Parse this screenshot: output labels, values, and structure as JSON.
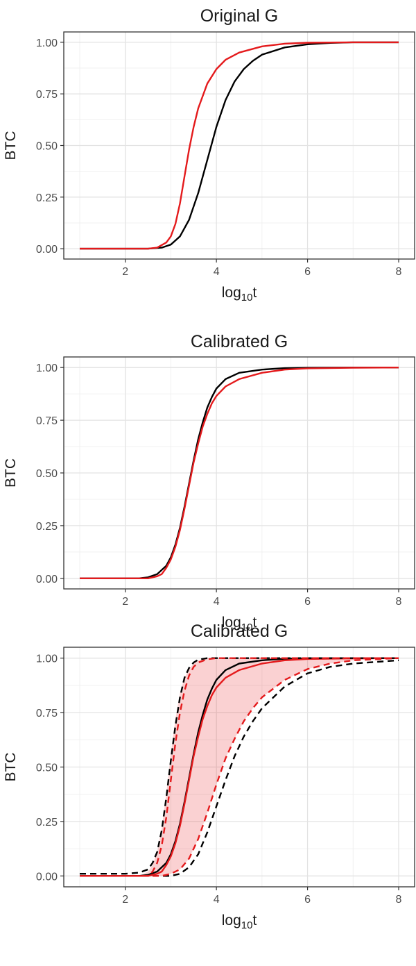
{
  "chart_data": [
    {
      "type": "line",
      "title": "Original G",
      "xlabel": "log10t",
      "ylabel": "BTC",
      "xlim": [
        0.65,
        8.35
      ],
      "ylim": [
        -0.05,
        1.05
      ],
      "xticks": [
        2,
        4,
        6,
        8
      ],
      "yticks": [
        0.0,
        0.25,
        0.5,
        0.75,
        1.0
      ],
      "xtick_labels": [
        "2",
        "4",
        "6",
        "8"
      ],
      "ytick_labels": [
        "0.00",
        "0.25",
        "0.50",
        "0.75",
        "1.00"
      ],
      "grid": true,
      "series": [
        {
          "color": "#000000",
          "dash": false,
          "x": [
            1.0,
            2.5,
            2.8,
            3.0,
            3.2,
            3.4,
            3.6,
            3.8,
            4.0,
            4.2,
            4.4,
            4.6,
            4.8,
            5.0,
            5.5,
            6.0,
            6.5,
            7.0,
            8.0
          ],
          "y": [
            0.0,
            0.0,
            0.005,
            0.02,
            0.06,
            0.14,
            0.27,
            0.43,
            0.59,
            0.72,
            0.81,
            0.87,
            0.91,
            0.94,
            0.975,
            0.99,
            0.997,
            1.0,
            1.0
          ]
        },
        {
          "color": "#e41a1c",
          "dash": false,
          "x": [
            1.0,
            2.5,
            2.7,
            2.9,
            3.0,
            3.1,
            3.2,
            3.3,
            3.4,
            3.5,
            3.6,
            3.8,
            4.0,
            4.2,
            4.5,
            5.0,
            5.5,
            6.0,
            7.0,
            8.0
          ],
          "y": [
            0.0,
            0.0,
            0.005,
            0.03,
            0.06,
            0.12,
            0.22,
            0.35,
            0.48,
            0.59,
            0.68,
            0.8,
            0.87,
            0.915,
            0.95,
            0.98,
            0.993,
            0.998,
            1.0,
            1.0
          ]
        }
      ]
    },
    {
      "type": "line",
      "title": "Calibrated G",
      "xlabel": "log10t",
      "ylabel": "BTC",
      "xlim": [
        0.65,
        8.35
      ],
      "ylim": [
        -0.05,
        1.05
      ],
      "xticks": [
        2,
        4,
        6,
        8
      ],
      "yticks": [
        0.0,
        0.25,
        0.5,
        0.75,
        1.0
      ],
      "xtick_labels": [
        "2",
        "4",
        "6",
        "8"
      ],
      "ytick_labels": [
        "0.00",
        "0.25",
        "0.50",
        "0.75",
        "1.00"
      ],
      "grid": true,
      "series": [
        {
          "color": "#000000",
          "dash": false,
          "x": [
            1.0,
            2.3,
            2.5,
            2.7,
            2.9,
            3.0,
            3.1,
            3.2,
            3.3,
            3.4,
            3.5,
            3.6,
            3.7,
            3.8,
            3.9,
            4.0,
            4.2,
            4.5,
            5.0,
            5.5,
            6.0,
            7.0,
            8.0
          ],
          "y": [
            0.0,
            0.0,
            0.005,
            0.02,
            0.06,
            0.1,
            0.16,
            0.24,
            0.34,
            0.45,
            0.56,
            0.66,
            0.74,
            0.81,
            0.86,
            0.9,
            0.945,
            0.975,
            0.99,
            0.997,
            0.999,
            1.0,
            1.0
          ]
        },
        {
          "color": "#e41a1c",
          "dash": false,
          "x": [
            1.0,
            2.5,
            2.7,
            2.8,
            2.9,
            3.0,
            3.1,
            3.2,
            3.3,
            3.4,
            3.5,
            3.6,
            3.7,
            3.8,
            3.9,
            4.0,
            4.2,
            4.5,
            5.0,
            5.5,
            6.0,
            7.0,
            8.0
          ],
          "y": [
            0.0,
            0.0,
            0.01,
            0.02,
            0.05,
            0.09,
            0.15,
            0.23,
            0.33,
            0.44,
            0.55,
            0.64,
            0.72,
            0.78,
            0.83,
            0.865,
            0.91,
            0.945,
            0.975,
            0.99,
            0.996,
            0.999,
            1.0
          ]
        }
      ]
    },
    {
      "type": "line",
      "title": "Calibrated G",
      "xlabel": "log10t",
      "ylabel": "BTC",
      "xlim": [
        0.65,
        8.35
      ],
      "ylim": [
        -0.05,
        1.05
      ],
      "xticks": [
        2,
        4,
        6,
        8
      ],
      "yticks": [
        0.0,
        0.25,
        0.5,
        0.75,
        1.0
      ],
      "xtick_labels": [
        "2",
        "4",
        "6",
        "8"
      ],
      "ytick_labels": [
        "0.00",
        "0.25",
        "0.50",
        "0.75",
        "1.00"
      ],
      "grid": true,
      "band": {
        "fill": "#e41a1c",
        "opacity": 0.2,
        "lower": {
          "x": [
            1.0,
            2.8,
            3.0,
            3.2,
            3.4,
            3.6,
            3.8,
            4.0,
            4.2,
            4.4,
            4.6,
            4.8,
            5.0,
            5.5,
            6.0,
            6.5,
            7.0,
            8.0
          ],
          "y": [
            0.0,
            0.0,
            0.01,
            0.03,
            0.08,
            0.17,
            0.29,
            0.42,
            0.54,
            0.63,
            0.71,
            0.77,
            0.82,
            0.9,
            0.95,
            0.975,
            0.99,
            1.0
          ]
        },
        "upper": {
          "x": [
            1.0,
            2.3,
            2.5,
            2.6,
            2.7,
            2.8,
            2.9,
            3.0,
            3.1,
            3.2,
            3.3,
            3.4,
            3.5,
            3.6,
            3.8,
            4.0,
            4.5,
            5.0,
            6.0,
            8.0
          ],
          "y": [
            0.0,
            0.0,
            0.02,
            0.05,
            0.11,
            0.22,
            0.38,
            0.56,
            0.72,
            0.84,
            0.91,
            0.95,
            0.975,
            0.99,
            0.998,
            1.0,
            1.0,
            1.0,
            1.0,
            1.0
          ]
        }
      },
      "series": [
        {
          "color": "#000000",
          "dash": false,
          "x": [
            1.0,
            2.3,
            2.5,
            2.7,
            2.9,
            3.0,
            3.1,
            3.2,
            3.3,
            3.4,
            3.5,
            3.6,
            3.7,
            3.8,
            3.9,
            4.0,
            4.2,
            4.5,
            5.0,
            5.5,
            6.0,
            7.0,
            8.0
          ],
          "y": [
            0.0,
            0.0,
            0.005,
            0.02,
            0.06,
            0.1,
            0.16,
            0.24,
            0.34,
            0.45,
            0.56,
            0.66,
            0.74,
            0.81,
            0.86,
            0.9,
            0.945,
            0.975,
            0.99,
            0.997,
            0.999,
            1.0,
            1.0
          ]
        },
        {
          "color": "#e41a1c",
          "dash": false,
          "x": [
            1.0,
            2.5,
            2.7,
            2.8,
            2.9,
            3.0,
            3.1,
            3.2,
            3.3,
            3.4,
            3.5,
            3.6,
            3.7,
            3.8,
            3.9,
            4.0,
            4.2,
            4.5,
            5.0,
            5.5,
            6.0,
            7.0,
            8.0
          ],
          "y": [
            0.0,
            0.0,
            0.01,
            0.02,
            0.05,
            0.09,
            0.15,
            0.23,
            0.33,
            0.44,
            0.55,
            0.64,
            0.72,
            0.78,
            0.83,
            0.865,
            0.91,
            0.945,
            0.975,
            0.99,
            0.996,
            0.999,
            1.0
          ]
        },
        {
          "color": "#000000",
          "dash": true,
          "x": [
            1.0,
            2.0,
            2.3,
            2.5,
            2.6,
            2.7,
            2.8,
            2.9,
            3.0,
            3.1,
            3.2,
            3.3,
            3.4,
            3.5,
            3.6,
            3.8,
            4.0,
            5.0,
            8.0
          ],
          "y": [
            0.01,
            0.01,
            0.015,
            0.03,
            0.06,
            0.11,
            0.21,
            0.36,
            0.53,
            0.69,
            0.82,
            0.91,
            0.955,
            0.98,
            0.993,
            1.0,
            1.0,
            1.0,
            1.0
          ]
        },
        {
          "color": "#000000",
          "dash": true,
          "x": [
            1.0,
            3.0,
            3.2,
            3.4,
            3.6,
            3.8,
            4.0,
            4.2,
            4.4,
            4.6,
            4.8,
            5.0,
            5.5,
            6.0,
            6.5,
            7.0,
            8.0
          ],
          "y": [
            0.0,
            0.0,
            0.01,
            0.04,
            0.1,
            0.2,
            0.32,
            0.44,
            0.55,
            0.64,
            0.71,
            0.77,
            0.87,
            0.93,
            0.96,
            0.975,
            0.99
          ]
        },
        {
          "color": "#e41a1c",
          "dash": true,
          "x": [
            1.0,
            2.5,
            2.6,
            2.7,
            2.8,
            2.9,
            3.0,
            3.1,
            3.2,
            3.3,
            3.4,
            3.5,
            3.6,
            3.8,
            4.0,
            4.5,
            5.0,
            8.0
          ],
          "y": [
            0.0,
            0.0,
            0.02,
            0.06,
            0.14,
            0.27,
            0.44,
            0.61,
            0.75,
            0.85,
            0.92,
            0.96,
            0.98,
            0.995,
            1.0,
            1.0,
            1.0,
            1.0
          ]
        },
        {
          "color": "#e41a1c",
          "dash": true,
          "x": [
            1.0,
            2.8,
            3.0,
            3.2,
            3.4,
            3.6,
            3.8,
            4.0,
            4.2,
            4.4,
            4.6,
            4.8,
            5.0,
            5.5,
            6.0,
            6.5,
            7.0,
            8.0
          ],
          "y": [
            0.0,
            0.0,
            0.01,
            0.03,
            0.08,
            0.17,
            0.29,
            0.42,
            0.54,
            0.63,
            0.71,
            0.77,
            0.82,
            0.9,
            0.95,
            0.975,
            0.99,
            1.0
          ]
        }
      ]
    }
  ]
}
